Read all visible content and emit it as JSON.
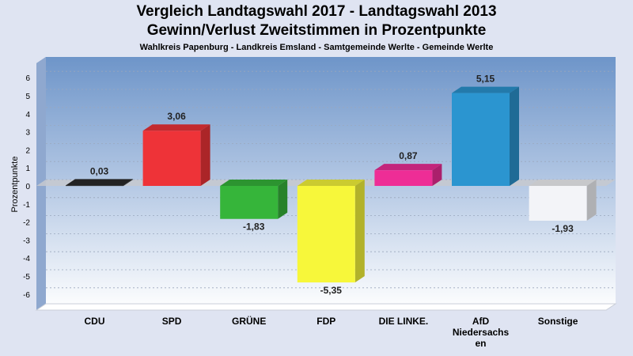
{
  "chart_data": {
    "type": "bar",
    "title_line1": "Vergleich Landtagswahl 2017 - Landtagswahl 2013",
    "title_line2": "Gewinn/Verlust Zweitstimmen in Prozentpunkte",
    "subtitle": "Wahlkreis Papenburg - Landkreis Emsland - Samtgemeinde Werlte - Gemeinde Werlte",
    "ylabel": "Prozentpunkte",
    "xlabel": "",
    "ylim": [
      -7,
      7
    ],
    "yticks": [
      -6,
      -5,
      -4,
      -3,
      -2,
      -1,
      0,
      1,
      2,
      3,
      4,
      5,
      6
    ],
    "grid": true,
    "categories": [
      "CDU",
      "SPD",
      "GRÜNE",
      "FDP",
      "DIE LINKE.",
      "AfD Niedersachsen",
      "Sonstige"
    ],
    "category_label_lines": [
      [
        "CDU"
      ],
      [
        "SPD"
      ],
      [
        "GRÜNE"
      ],
      [
        "FDP"
      ],
      [
        "DIE LINKE."
      ],
      [
        "AfD",
        "Niedersachs",
        "en"
      ],
      [
        "Sonstige"
      ]
    ],
    "values": [
      0.03,
      3.06,
      -1.83,
      -5.35,
      0.87,
      5.15,
      -1.93
    ],
    "value_labels": [
      "0,03",
      "3,06",
      "-1,83",
      "-5,35",
      "0,87",
      "5,15",
      "-1,93"
    ],
    "colors": [
      "#2b2b2b",
      "#ee3338",
      "#36b53a",
      "#f7f73a",
      "#ee2d96",
      "#2b95d0",
      "#f3f4f8"
    ]
  }
}
